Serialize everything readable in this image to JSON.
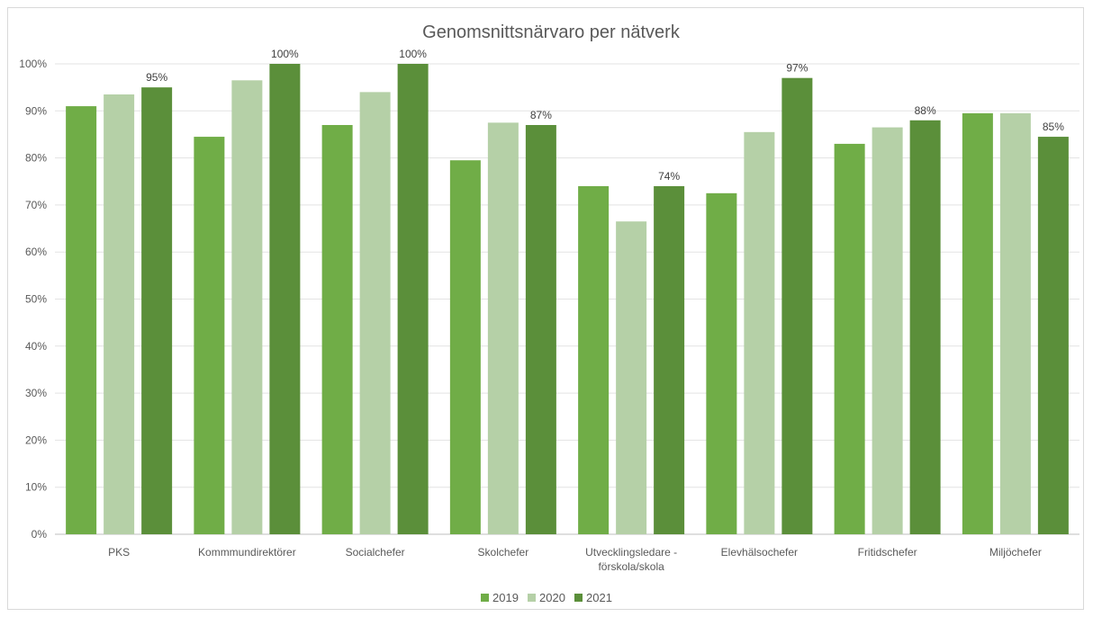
{
  "chart_data": {
    "type": "bar",
    "title": "Genomsnittsnärvaro per nätverk",
    "xlabel": "",
    "ylabel": "",
    "ylim": [
      0,
      100
    ],
    "yticks": [
      "0%",
      "10%",
      "20%",
      "30%",
      "40%",
      "50%",
      "60%",
      "70%",
      "80%",
      "90%",
      "100%"
    ],
    "categories": [
      [
        "PKS"
      ],
      [
        "Kommmundirektörer"
      ],
      [
        "Socialchefer"
      ],
      [
        "Skolchefer"
      ],
      [
        "Utvecklingsledare -",
        "förskola/skola"
      ],
      [
        "Elevhälsochefer"
      ],
      [
        "Fritidschefer"
      ],
      [
        "Miljöchefer"
      ]
    ],
    "series": [
      {
        "name": "2019",
        "color": "#70ad47",
        "values": [
          91,
          84.5,
          87,
          79.5,
          74,
          72.5,
          83,
          89.5
        ]
      },
      {
        "name": "2020",
        "color": "#b5d0a7",
        "values": [
          93.5,
          96.5,
          94,
          87.5,
          66.5,
          85.5,
          86.5,
          89.5
        ]
      },
      {
        "name": "2021",
        "color": "#5b8f3a",
        "values": [
          95,
          100,
          100,
          87,
          74,
          97,
          88,
          84.5
        ],
        "data_labels": [
          "95%",
          "100%",
          "100%",
          "87%",
          "74%",
          "97%",
          "88%",
          "85%"
        ]
      }
    ],
    "grid": true,
    "legend_position": "bottom"
  }
}
